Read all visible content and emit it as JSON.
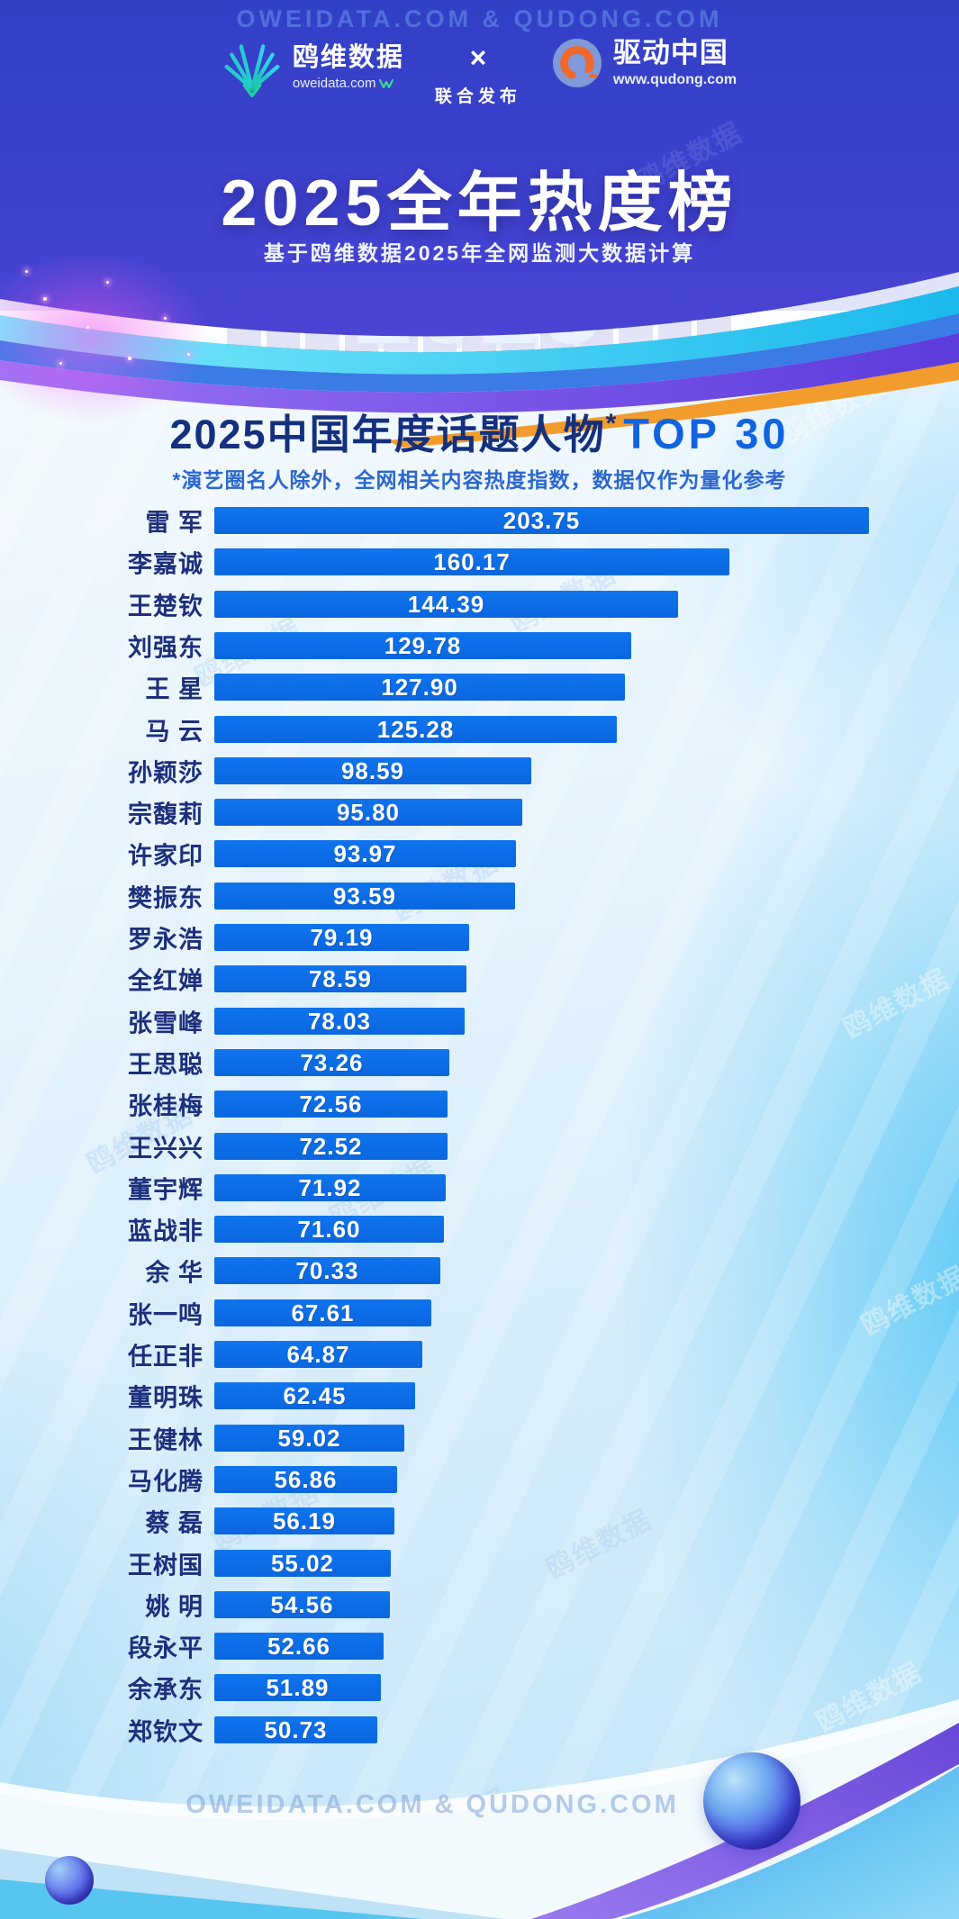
{
  "header": {
    "watermark": "OWEIDATA.COM & QUDONG.COM",
    "brand_left": {
      "name": "鸥维数据",
      "domain": "oweidata.com"
    },
    "collab": {
      "x": "×",
      "label": "联合发布"
    },
    "brand_right": {
      "name": "驱动中国",
      "domain": "www.qudong.com"
    },
    "title": "2025全年热度榜",
    "subtitle": "基于鸥维数据2025年全网监测大数据计算",
    "year_graphic": "2025"
  },
  "section": {
    "title_main": "2025中国年度话题人物",
    "title_star": "*",
    "title_top": "TOP 30",
    "note": "*演艺圈名人除外，全网相关内容热度指数，数据仅作为量化参考"
  },
  "chart_data": {
    "type": "bar",
    "orientation": "horizontal",
    "title": "2025中国年度话题人物 TOP 30",
    "xlabel": "",
    "ylabel": "",
    "xlim": [
      0,
      210
    ],
    "grid": false,
    "value_labels_inside_bars": true,
    "bar_color": "#0c6ce7",
    "name_color": "#1d2f7c",
    "value_color": "#ffffff",
    "categories": [
      "雷 军",
      "李嘉诚",
      "王楚钦",
      "刘强东",
      "王 星",
      "马 云",
      "孙颖莎",
      "宗馥莉",
      "许家印",
      "樊振东",
      "罗永浩",
      "全红婵",
      "张雪峰",
      "王思聪",
      "张桂梅",
      "王兴兴",
      "董宇辉",
      "蓝战非",
      "余 华",
      "张一鸣",
      "任正非",
      "董明珠",
      "王健林",
      "马化腾",
      "蔡 磊",
      "王树国",
      "姚 明",
      "段永平",
      "余承东",
      "郑钦文"
    ],
    "values": [
      203.75,
      160.17,
      144.39,
      129.78,
      127.9,
      125.28,
      98.59,
      95.8,
      93.97,
      93.59,
      79.19,
      78.59,
      78.03,
      73.26,
      72.56,
      72.52,
      71.92,
      71.6,
      70.33,
      67.61,
      64.87,
      62.45,
      59.02,
      56.86,
      56.19,
      55.02,
      54.56,
      52.66,
      51.89,
      50.73
    ]
  },
  "watermark_text": "鸥维数据",
  "footer": {
    "watermark": "OWEIDATA.COM & QUDONG.COM"
  },
  "colors": {
    "bar": "#0c6ce7",
    "header_bg": "#3140c6",
    "section_title": "#14307e",
    "top30": "#1263e0",
    "note": "#2c67cf",
    "cyan_swoosh": "#3fd4f6",
    "purple_swoosh": "#7a55ee",
    "orange_swoosh": "#f29c2d"
  }
}
